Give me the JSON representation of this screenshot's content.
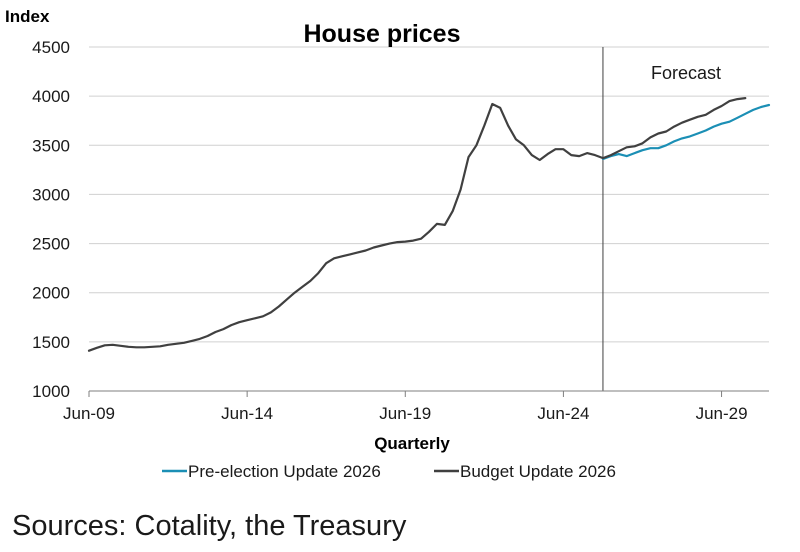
{
  "chart_data": {
    "type": "line",
    "title": "House prices",
    "ylabel": "Index",
    "xlabel": "Quarterly",
    "ylim": [
      1000,
      4500
    ],
    "yticks": [
      1000,
      1500,
      2000,
      2500,
      3000,
      3500,
      4000,
      4500
    ],
    "xlim": [
      2009.5,
      2031.0
    ],
    "xticks": [
      {
        "label": "Jun-09",
        "value": 2009.5
      },
      {
        "label": "Jun-14",
        "value": 2014.5
      },
      {
        "label": "Jun-19",
        "value": 2019.5
      },
      {
        "label": "Jun-24",
        "value": 2024.5
      },
      {
        "label": "Jun-29",
        "value": 2029.5
      }
    ],
    "grid": "horizontal",
    "legend_position": "bottom",
    "forecast_start": 2025.75,
    "annotation": "Forecast",
    "series": [
      {
        "name": "Pre-election Update 2026",
        "color": "#1b8fb5",
        "points": [
          [
            2025.75,
            3360
          ],
          [
            2026.0,
            3390
          ],
          [
            2026.25,
            3410
          ],
          [
            2026.5,
            3390
          ],
          [
            2026.75,
            3420
          ],
          [
            2027.0,
            3450
          ],
          [
            2027.25,
            3470
          ],
          [
            2027.5,
            3470
          ],
          [
            2027.75,
            3500
          ],
          [
            2028.0,
            3540
          ],
          [
            2028.25,
            3570
          ],
          [
            2028.5,
            3590
          ],
          [
            2028.75,
            3620
          ],
          [
            2029.0,
            3650
          ],
          [
            2029.25,
            3690
          ],
          [
            2029.5,
            3720
          ],
          [
            2029.75,
            3740
          ],
          [
            2030.0,
            3780
          ],
          [
            2030.25,
            3820
          ],
          [
            2030.5,
            3860
          ],
          [
            2030.75,
            3890
          ],
          [
            2031.0,
            3910
          ]
        ]
      },
      {
        "name": "Budget Update 2026",
        "color": "#404040",
        "points": [
          [
            2009.5,
            1410
          ],
          [
            2009.75,
            1440
          ],
          [
            2010.0,
            1465
          ],
          [
            2010.25,
            1470
          ],
          [
            2010.5,
            1460
          ],
          [
            2010.75,
            1450
          ],
          [
            2011.0,
            1445
          ],
          [
            2011.25,
            1445
          ],
          [
            2011.5,
            1450
          ],
          [
            2011.75,
            1455
          ],
          [
            2012.0,
            1470
          ],
          [
            2012.25,
            1480
          ],
          [
            2012.5,
            1490
          ],
          [
            2012.75,
            1510
          ],
          [
            2013.0,
            1530
          ],
          [
            2013.25,
            1560
          ],
          [
            2013.5,
            1600
          ],
          [
            2013.75,
            1630
          ],
          [
            2014.0,
            1670
          ],
          [
            2014.25,
            1700
          ],
          [
            2014.5,
            1720
          ],
          [
            2014.75,
            1740
          ],
          [
            2015.0,
            1760
          ],
          [
            2015.25,
            1800
          ],
          [
            2015.5,
            1860
          ],
          [
            2015.75,
            1930
          ],
          [
            2016.0,
            2000
          ],
          [
            2016.25,
            2060
          ],
          [
            2016.5,
            2120
          ],
          [
            2016.75,
            2200
          ],
          [
            2017.0,
            2300
          ],
          [
            2017.25,
            2350
          ],
          [
            2017.5,
            2370
          ],
          [
            2017.75,
            2390
          ],
          [
            2018.0,
            2410
          ],
          [
            2018.25,
            2430
          ],
          [
            2018.5,
            2460
          ],
          [
            2018.75,
            2480
          ],
          [
            2019.0,
            2500
          ],
          [
            2019.25,
            2515
          ],
          [
            2019.5,
            2520
          ],
          [
            2019.75,
            2530
          ],
          [
            2020.0,
            2550
          ],
          [
            2020.25,
            2620
          ],
          [
            2020.5,
            2700
          ],
          [
            2020.75,
            2690
          ],
          [
            2021.0,
            2830
          ],
          [
            2021.25,
            3050
          ],
          [
            2021.5,
            3380
          ],
          [
            2021.75,
            3500
          ],
          [
            2022.0,
            3700
          ],
          [
            2022.25,
            3920
          ],
          [
            2022.5,
            3880
          ],
          [
            2022.75,
            3700
          ],
          [
            2023.0,
            3560
          ],
          [
            2023.25,
            3500
          ],
          [
            2023.5,
            3400
          ],
          [
            2023.75,
            3350
          ],
          [
            2024.0,
            3410
          ],
          [
            2024.25,
            3460
          ],
          [
            2024.5,
            3460
          ],
          [
            2024.75,
            3400
          ],
          [
            2025.0,
            3390
          ],
          [
            2025.25,
            3420
          ],
          [
            2025.5,
            3400
          ],
          [
            2025.75,
            3370
          ],
          [
            2026.0,
            3400
          ],
          [
            2026.25,
            3440
          ],
          [
            2026.5,
            3480
          ],
          [
            2026.75,
            3490
          ],
          [
            2027.0,
            3520
          ],
          [
            2027.25,
            3580
          ],
          [
            2027.5,
            3620
          ],
          [
            2027.75,
            3640
          ],
          [
            2028.0,
            3690
          ],
          [
            2028.25,
            3730
          ],
          [
            2028.5,
            3760
          ],
          [
            2028.75,
            3790
          ],
          [
            2029.0,
            3810
          ],
          [
            2029.25,
            3860
          ],
          [
            2029.5,
            3900
          ],
          [
            2029.75,
            3950
          ],
          [
            2030.0,
            3970
          ],
          [
            2030.25,
            3980
          ]
        ]
      }
    ]
  },
  "source_note": "Sources: Cotality, the Treasury"
}
